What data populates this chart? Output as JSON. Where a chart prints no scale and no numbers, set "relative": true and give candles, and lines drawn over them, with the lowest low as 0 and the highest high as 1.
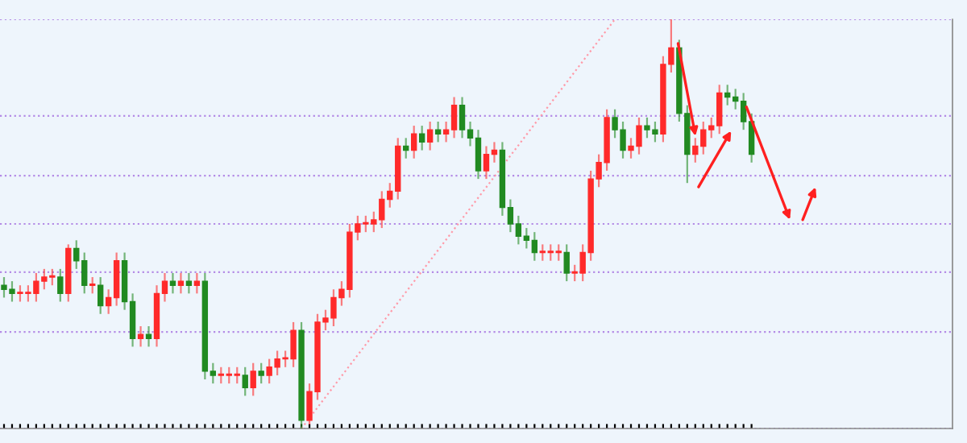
{
  "chart_data": {
    "type": "candlestick",
    "relative": true,
    "grid": false,
    "categories": [
      null,
      null,
      null,
      null,
      null,
      null,
      null,
      null,
      null,
      null,
      null,
      null,
      null,
      null,
      null,
      null,
      null,
      null,
      null,
      null,
      null,
      null,
      null,
      null,
      null,
      null,
      null,
      null,
      null,
      null,
      null,
      null,
      null,
      null,
      null,
      null,
      null,
      null,
      null,
      null,
      null,
      null,
      null,
      null,
      null,
      null,
      null,
      null,
      null,
      null,
      null,
      null,
      null,
      null,
      null,
      null,
      null,
      null,
      null,
      null,
      null,
      null,
      null,
      null,
      null,
      null,
      null,
      null,
      null,
      null,
      null,
      null,
      null,
      null,
      null,
      null,
      null,
      null,
      null,
      null,
      null,
      null,
      null,
      null,
      null,
      null,
      null,
      null,
      null,
      null,
      null,
      null,
      null,
      null
    ],
    "ohlc": [
      [
        0.35,
        0.37,
        0.32,
        0.34
      ],
      [
        0.34,
        0.36,
        0.31,
        0.33
      ],
      [
        0.33,
        0.35,
        0.31,
        0.33
      ],
      [
        0.33,
        0.35,
        0.31,
        0.33
      ],
      [
        0.33,
        0.38,
        0.31,
        0.36
      ],
      [
        0.36,
        0.39,
        0.34,
        0.37
      ],
      [
        0.37,
        0.39,
        0.35,
        0.37
      ],
      [
        0.37,
        0.39,
        0.31,
        0.33
      ],
      [
        0.33,
        0.45,
        0.31,
        0.44
      ],
      [
        0.44,
        0.46,
        0.39,
        0.41
      ],
      [
        0.41,
        0.43,
        0.33,
        0.35
      ],
      [
        0.35,
        0.37,
        0.33,
        0.35
      ],
      [
        0.35,
        0.37,
        0.28,
        0.3
      ],
      [
        0.3,
        0.34,
        0.28,
        0.32
      ],
      [
        0.32,
        0.43,
        0.3,
        0.41
      ],
      [
        0.41,
        0.43,
        0.29,
        0.31
      ],
      [
        0.31,
        0.33,
        0.2,
        0.22
      ],
      [
        0.22,
        0.25,
        0.2,
        0.23
      ],
      [
        0.23,
        0.25,
        0.2,
        0.22
      ],
      [
        0.22,
        0.35,
        0.2,
        0.33
      ],
      [
        0.33,
        0.38,
        0.31,
        0.36
      ],
      [
        0.36,
        0.38,
        0.33,
        0.35
      ],
      [
        0.35,
        0.38,
        0.33,
        0.36
      ],
      [
        0.36,
        0.38,
        0.33,
        0.35
      ],
      [
        0.35,
        0.38,
        0.33,
        0.36
      ],
      [
        0.36,
        0.38,
        0.12,
        0.14
      ],
      [
        0.14,
        0.16,
        0.11,
        0.13
      ],
      [
        0.13,
        0.15,
        0.11,
        0.13
      ],
      [
        0.13,
        0.15,
        0.11,
        0.13
      ],
      [
        0.13,
        0.15,
        0.11,
        0.13
      ],
      [
        0.13,
        0.15,
        0.08,
        0.1
      ],
      [
        0.1,
        0.16,
        0.08,
        0.14
      ],
      [
        0.14,
        0.16,
        0.11,
        0.13
      ],
      [
        0.13,
        0.17,
        0.11,
        0.15
      ],
      [
        0.15,
        0.19,
        0.13,
        0.17
      ],
      [
        0.17,
        0.19,
        0.15,
        0.17
      ],
      [
        0.17,
        0.26,
        0.15,
        0.24
      ],
      [
        0.24,
        0.26,
        0.0,
        0.02
      ],
      [
        0.02,
        0.11,
        0.01,
        0.09
      ],
      [
        0.09,
        0.28,
        0.07,
        0.26
      ],
      [
        0.26,
        0.29,
        0.24,
        0.27
      ],
      [
        0.27,
        0.34,
        0.25,
        0.32
      ],
      [
        0.32,
        0.36,
        0.3,
        0.34
      ],
      [
        0.34,
        0.5,
        0.32,
        0.48
      ],
      [
        0.48,
        0.52,
        0.46,
        0.5
      ],
      [
        0.5,
        0.52,
        0.48,
        0.5
      ],
      [
        0.5,
        0.53,
        0.48,
        0.51
      ],
      [
        0.51,
        0.58,
        0.49,
        0.56
      ],
      [
        0.56,
        0.6,
        0.54,
        0.58
      ],
      [
        0.58,
        0.71,
        0.56,
        0.69
      ],
      [
        0.69,
        0.71,
        0.66,
        0.68
      ],
      [
        0.68,
        0.74,
        0.66,
        0.72
      ],
      [
        0.72,
        0.74,
        0.68,
        0.7
      ],
      [
        0.7,
        0.75,
        0.68,
        0.73
      ],
      [
        0.73,
        0.75,
        0.7,
        0.72
      ],
      [
        0.72,
        0.75,
        0.7,
        0.73
      ],
      [
        0.73,
        0.81,
        0.71,
        0.79
      ],
      [
        0.79,
        0.81,
        0.71,
        0.73
      ],
      [
        0.73,
        0.75,
        0.69,
        0.71
      ],
      [
        0.71,
        0.73,
        0.61,
        0.63
      ],
      [
        0.63,
        0.69,
        0.61,
        0.67
      ],
      [
        0.67,
        0.7,
        0.65,
        0.68
      ],
      [
        0.68,
        0.7,
        0.52,
        0.54
      ],
      [
        0.54,
        0.56,
        0.48,
        0.5
      ],
      [
        0.5,
        0.52,
        0.45,
        0.47
      ],
      [
        0.47,
        0.49,
        0.44,
        0.46
      ],
      [
        0.46,
        0.48,
        0.41,
        0.43
      ],
      [
        0.43,
        0.45,
        0.41,
        0.43
      ],
      [
        0.43,
        0.45,
        0.41,
        0.43
      ],
      [
        0.43,
        0.45,
        0.41,
        0.43
      ],
      [
        0.43,
        0.45,
        0.36,
        0.38
      ],
      [
        0.38,
        0.4,
        0.36,
        0.38
      ],
      [
        0.38,
        0.45,
        0.36,
        0.43
      ],
      [
        0.43,
        0.63,
        0.41,
        0.61
      ],
      [
        0.61,
        0.67,
        0.59,
        0.65
      ],
      [
        0.65,
        0.78,
        0.63,
        0.76
      ],
      [
        0.76,
        0.78,
        0.71,
        0.73
      ],
      [
        0.73,
        0.75,
        0.66,
        0.68
      ],
      [
        0.68,
        0.71,
        0.66,
        0.69
      ],
      [
        0.69,
        0.76,
        0.67,
        0.74
      ],
      [
        0.74,
        0.76,
        0.71,
        0.73
      ],
      [
        0.73,
        0.75,
        0.7,
        0.72
      ],
      [
        0.72,
        0.91,
        0.7,
        0.89
      ],
      [
        0.89,
        1.0,
        0.87,
        0.93
      ],
      [
        0.93,
        0.95,
        0.75,
        0.77
      ],
      [
        0.77,
        0.79,
        0.6,
        0.67
      ],
      [
        0.67,
        0.71,
        0.65,
        0.69
      ],
      [
        0.69,
        0.75,
        0.67,
        0.73
      ],
      [
        0.73,
        0.76,
        0.71,
        0.74
      ],
      [
        0.74,
        0.84,
        0.72,
        0.82
      ],
      [
        0.82,
        0.84,
        0.79,
        0.81
      ],
      [
        0.81,
        0.83,
        0.78,
        0.8
      ],
      [
        0.8,
        0.82,
        0.73,
        0.75
      ],
      [
        0.75,
        0.77,
        0.65,
        0.67
      ]
    ],
    "colors": [
      "#218a21",
      "#218a21",
      "#ff2a2a",
      "#ff2a2a",
      "#ff2a2a",
      "#ff2a2a",
      "#ff2a2a",
      "#218a21",
      "#ff2a2a",
      "#218a21",
      "#218a21",
      "#ff2a2a",
      "#218a21",
      "#ff2a2a",
      "#ff2a2a",
      "#218a21",
      "#218a21",
      "#ff2a2a",
      "#218a21",
      "#ff2a2a",
      "#ff2a2a",
      "#218a21",
      "#ff2a2a",
      "#218a21",
      "#ff2a2a",
      "#218a21",
      "#218a21",
      "#ff2a2a",
      "#ff2a2a",
      "#ff2a2a",
      "#218a21",
      "#ff2a2a",
      "#218a21",
      "#ff2a2a",
      "#ff2a2a",
      "#ff2a2a",
      "#ff2a2a",
      "#218a21",
      "#ff2a2a",
      "#ff2a2a",
      "#ff2a2a",
      "#ff2a2a",
      "#ff2a2a",
      "#ff2a2a",
      "#ff2a2a",
      "#ff2a2a",
      "#ff2a2a",
      "#ff2a2a",
      "#ff2a2a",
      "#ff2a2a",
      "#218a21",
      "#ff2a2a",
      "#218a21",
      "#ff2a2a",
      "#218a21",
      "#ff2a2a",
      "#ff2a2a",
      "#218a21",
      "#218a21",
      "#218a21",
      "#ff2a2a",
      "#ff2a2a",
      "#218a21",
      "#218a21",
      "#218a21",
      "#218a21",
      "#218a21",
      "#ff2a2a",
      "#ff2a2a",
      "#ff2a2a",
      "#218a21",
      "#ff2a2a",
      "#ff2a2a",
      "#ff2a2a",
      "#ff2a2a",
      "#ff2a2a",
      "#218a21",
      "#218a21",
      "#ff2a2a",
      "#ff2a2a",
      "#218a21",
      "#218a21",
      "#ff2a2a",
      "#ff2a2a",
      "#218a21",
      "#218a21",
      "#ff2a2a",
      "#ff2a2a",
      "#ff2a2a",
      "#ff2a2a",
      "#218a21",
      "#218a21",
      "#218a21",
      "#218a21"
    ],
    "series": [
      {
        "type": "line",
        "color": "#ff9aa8",
        "line_style": "dotted",
        "values": [
          null,
          null,
          null,
          null,
          null,
          null,
          null,
          null,
          null,
          null,
          null,
          null,
          null,
          null,
          null,
          null,
          null,
          null,
          null,
          null,
          null,
          null,
          null,
          null,
          null,
          null,
          null,
          null,
          null,
          null,
          null,
          null,
          null,
          null,
          null,
          null,
          null,
          0.0,
          null,
          null,
          null,
          null,
          null,
          null,
          null,
          null,
          null,
          null,
          null,
          null,
          null,
          null,
          null,
          null,
          null,
          null,
          null,
          null,
          null,
          null,
          null,
          null,
          null,
          null,
          null,
          null,
          null,
          null,
          null,
          null,
          null,
          null,
          null,
          null,
          null,
          null,
          1.0,
          null,
          null,
          null,
          null,
          null,
          null,
          null,
          null,
          null,
          null,
          null,
          null,
          null,
          null,
          null,
          null,
          null
        ]
      }
    ],
    "ref_lines": [
      {
        "axis": "y",
        "value": 0.0,
        "color": "#b48ce6",
        "line_style": "dotted"
      },
      {
        "axis": "y",
        "value": 0.236,
        "color": "#b48ce6",
        "line_style": "dotted"
      },
      {
        "axis": "y",
        "value": 0.382,
        "color": "#b48ce6",
        "line_style": "dotted"
      },
      {
        "axis": "y",
        "value": 0.5,
        "color": "#b48ce6",
        "line_style": "dotted"
      },
      {
        "axis": "y",
        "value": 0.618,
        "color": "#b48ce6",
        "line_style": "dotted"
      },
      {
        "axis": "y",
        "value": 0.764,
        "color": "#b48ce6",
        "line_style": "dotted"
      },
      {
        "axis": "y",
        "value": 1.0,
        "color": "#b48ce6",
        "line_style": "dotted"
      }
    ]
  }
}
